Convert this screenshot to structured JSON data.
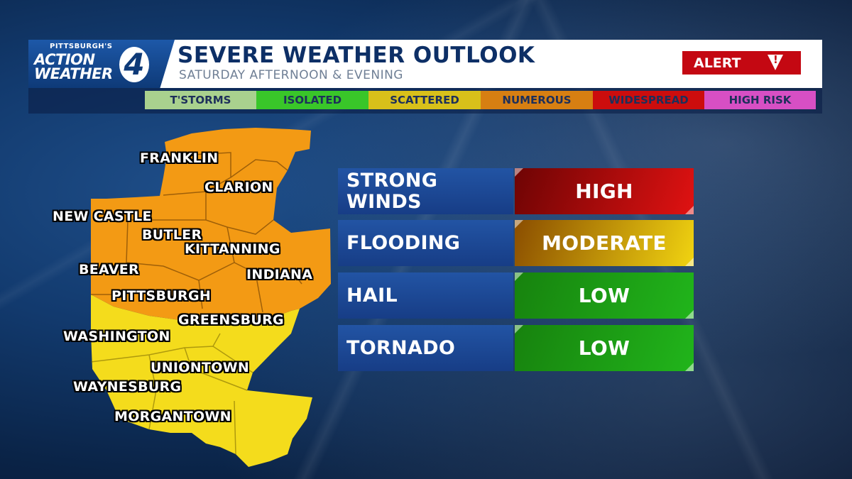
{
  "header": {
    "logo_top": "PITTSBURGH'S",
    "logo_action": "ACTION",
    "logo_weather": "WEATHER",
    "logo_number": "4",
    "title": "SEVERE WEATHER OUTLOOK",
    "subtitle": "SATURDAY AFTERNOON & EVENING",
    "alert_label": "ALERT",
    "alert_icon": "warning-triangle-icon"
  },
  "legend": [
    {
      "label": "T'STORMS",
      "color": "#a9d18e"
    },
    {
      "label": "ISOLATED",
      "color": "#39c629"
    },
    {
      "label": "SCATTERED",
      "color": "#d8c01a"
    },
    {
      "label": "NUMEROUS",
      "color": "#d77f12"
    },
    {
      "label": "WIDESPREAD",
      "color": "#cc0d0d"
    },
    {
      "label": "HIGH RISK",
      "color": "#d74fc4"
    }
  ],
  "map": {
    "risk_colors": {
      "numerous": "#f39a14",
      "scattered": "#f4dc1c"
    },
    "cities": [
      "FRANKLIN",
      "CLARION",
      "NEW CASTLE",
      "BUTLER",
      "KITTANNING",
      "BEAVER",
      "INDIANA",
      "PITTSBURGH",
      "GREENSBURG",
      "WASHINGTON",
      "UNIONTOWN",
      "WAYNESBURG",
      "MORGANTOWN"
    ]
  },
  "risks": [
    {
      "category": "STRONG\nWINDS",
      "level": "HIGH",
      "color_from": "#6e0404",
      "color_to": "#e01212"
    },
    {
      "category": "FLOODING",
      "level": "MODERATE",
      "color_from": "#8a4d00",
      "color_to": "#f1d411"
    },
    {
      "category": "HAIL",
      "level": "LOW",
      "color_from": "#17820e",
      "color_to": "#21b51b"
    },
    {
      "category": "TORNADO",
      "level": "LOW",
      "color_from": "#17820e",
      "color_to": "#21b51b"
    }
  ]
}
